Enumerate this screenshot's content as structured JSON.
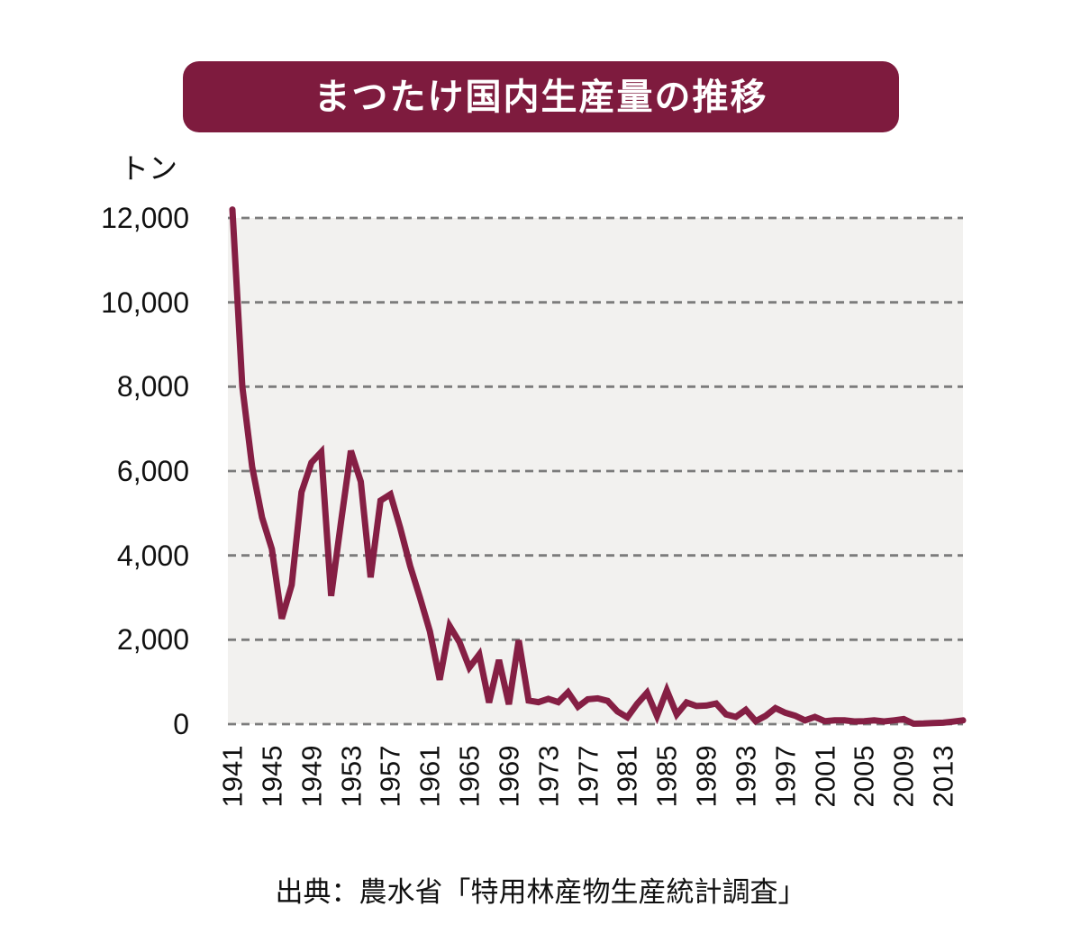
{
  "title": "まつたけ国内生産量の推移",
  "y_axis": {
    "unit_label": "トン",
    "ticks": [
      "12,000",
      "10,000",
      "8,000",
      "6,000",
      "4,000",
      "2,000",
      "0"
    ]
  },
  "x_axis": {
    "tick_years": [
      1941,
      1945,
      1949,
      1953,
      1957,
      1961,
      1965,
      1969,
      1973,
      1977,
      1981,
      1985,
      1989,
      1993,
      1997,
      2001,
      2005,
      2009,
      2013
    ]
  },
  "source": "出典：農水省「特用林産物生産統計調査」",
  "colors": {
    "accent": "#7E1B3E",
    "line": "#851F44",
    "plot_bg": "#F2F1EF",
    "grid": "#7C7C7C",
    "text": "#111111"
  },
  "chart_data": {
    "type": "line",
    "title": "まつたけ国内生産量の推移",
    "xlabel": "",
    "ylabel": "トン",
    "ylim": [
      0,
      12000
    ],
    "y_gridlines": [
      0,
      2000,
      4000,
      6000,
      8000,
      10000,
      12000
    ],
    "grid": "horizontal-dashed",
    "legend": "none",
    "x": [
      1941,
      1942,
      1943,
      1944,
      1945,
      1946,
      1947,
      1948,
      1949,
      1950,
      1951,
      1952,
      1953,
      1954,
      1955,
      1956,
      1957,
      1958,
      1959,
      1960,
      1961,
      1962,
      1963,
      1964,
      1965,
      1966,
      1967,
      1968,
      1969,
      1970,
      1971,
      1972,
      1973,
      1974,
      1975,
      1976,
      1977,
      1978,
      1979,
      1980,
      1981,
      1982,
      1983,
      1984,
      1985,
      1986,
      1987,
      1988,
      1989,
      1990,
      1991,
      1992,
      1993,
      1994,
      1995,
      1996,
      1997,
      1998,
      1999,
      2000,
      2001,
      2002,
      2003,
      2004,
      2005,
      2006,
      2007,
      2008,
      2009,
      2010,
      2011,
      2012,
      2013,
      2014,
      2015
    ],
    "values": [
      12200,
      8000,
      6100,
      4900,
      4150,
      2500,
      3300,
      5500,
      6200,
      6450,
      3040,
      4800,
      6480,
      5750,
      3480,
      5300,
      5450,
      4650,
      3750,
      3000,
      2200,
      1050,
      2330,
      1940,
      1340,
      1650,
      510,
      1520,
      470,
      1985,
      560,
      520,
      600,
      520,
      755,
      415,
      590,
      610,
      550,
      300,
      160,
      480,
      745,
      195,
      800,
      230,
      515,
      430,
      440,
      490,
      230,
      170,
      340,
      70,
      195,
      380,
      270,
      200,
      90,
      170,
      70,
      90,
      90,
      65,
      70,
      90,
      65,
      90,
      120,
      10,
      15,
      25,
      35,
      60,
      90
    ]
  }
}
